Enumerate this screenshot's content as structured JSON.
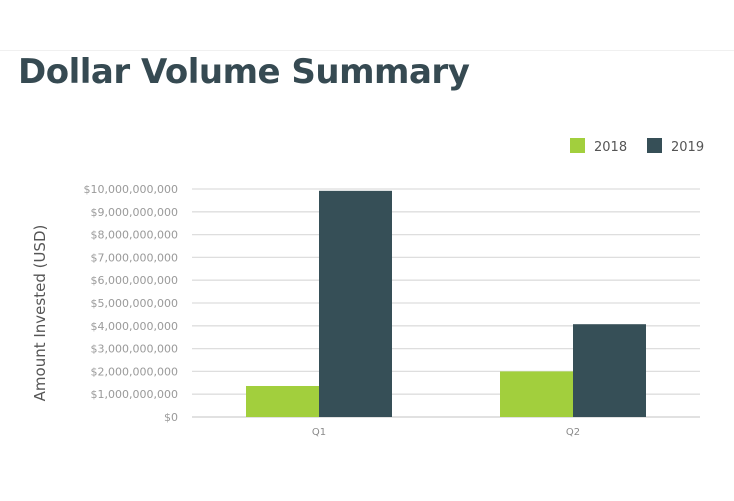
{
  "chart_data": {
    "type": "bar",
    "title": "Dollar Volume Summary",
    "xlabel": "",
    "ylabel": "Amount Invested (USD)",
    "categories": [
      "Q1",
      "Q2"
    ],
    "series": [
      {
        "name": "2018",
        "values": [
          1360000000,
          2000000000
        ],
        "color": "#a2cf3d"
      },
      {
        "name": "2019",
        "values": [
          9920000000,
          4070000000
        ],
        "color": "#364f57"
      }
    ],
    "ylim": [
      0,
      10000000000
    ],
    "yticks": [
      0,
      1000000000,
      2000000000,
      3000000000,
      4000000000,
      5000000000,
      6000000000,
      7000000000,
      8000000000,
      9000000000,
      10000000000
    ],
    "ytick_labels": [
      "$0",
      "$1,000,000,000",
      "$2,000,000,000",
      "$3,000,000,000",
      "$4,000,000,000",
      "$5,000,000,000",
      "$6,000,000,000",
      "$7,000,000,000",
      "$8,000,000,000",
      "$9,000,000,000",
      "$10,000,000,000"
    ],
    "grid": true,
    "legend_position": "top-right"
  }
}
